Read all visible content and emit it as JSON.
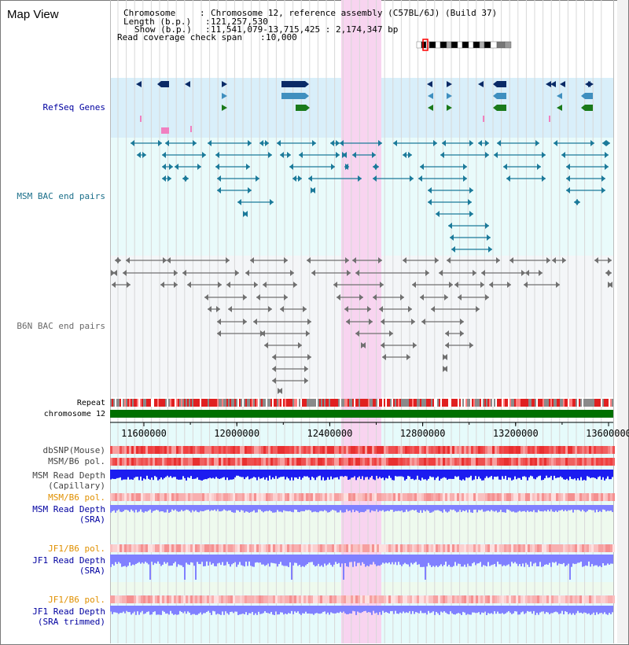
{
  "page": {
    "title": "Map View"
  },
  "info": {
    "chromosome_key": "Chromosome",
    "chromosome_value": "Chromosome 12, reference assembly (C57BL/6J) (Build 37)",
    "length_key": "Length (b.p.)",
    "length_value": "121,257,530",
    "show_key": "Show (b.p.)",
    "show_value": "11,541,079-13,715,425 : 2,174,347 bp",
    "span_key": "Read coverage check span",
    "span_value": "10,000"
  },
  "tracks": {
    "refseq": "RefSeq Genes",
    "msm_bac": "MSM BAC end pairs",
    "b6n_bac": "B6N BAC end pairs",
    "repeat": "Repeat",
    "chromosome": "chromosome 12",
    "dbsnp": "dbSNP(Mouse)",
    "msm_b6_pol_1": "MSM/B6 pol.",
    "msm_depth_cap_1": "MSM Read Depth",
    "msm_depth_cap_2": "(Capillary)",
    "msm_b6_pol_2": "MSM/B6 pol.",
    "msm_depth_sra_1": "MSM Read Depth",
    "msm_depth_sra_2": "(SRA)",
    "jf1_pol_1": "JF1/B6 pol.",
    "jf1_depth_1": "JF1 Read Depth",
    "jf1_depth_2": "(SRA)",
    "jf1_pol_2": "JF1/B6 pol.",
    "jf1_trim_1": "JF1 Read Depth",
    "jf1_trim_2": "(SRA trimmed)"
  },
  "axis": {
    "ticks": [
      "11600000",
      "12000000",
      "12400000",
      "12800000",
      "13200000",
      "13600000"
    ]
  },
  "colors": {
    "refseq_bg": "#d9effa",
    "bac_bg": "#e9fbfb",
    "b6n_bg": "#f4f6f8",
    "highlight": "#f8d4f0",
    "refseq_label": "#0000a0",
    "bac_label": "#1b6f8a",
    "b6n_label": "#6a6a6a",
    "orange_label": "#e09000",
    "blue_label": "#0000a0",
    "chromosome_bar": "#007000",
    "depth_blue": "#1c1cf0",
    "depth_light": "#8080ff"
  }
}
